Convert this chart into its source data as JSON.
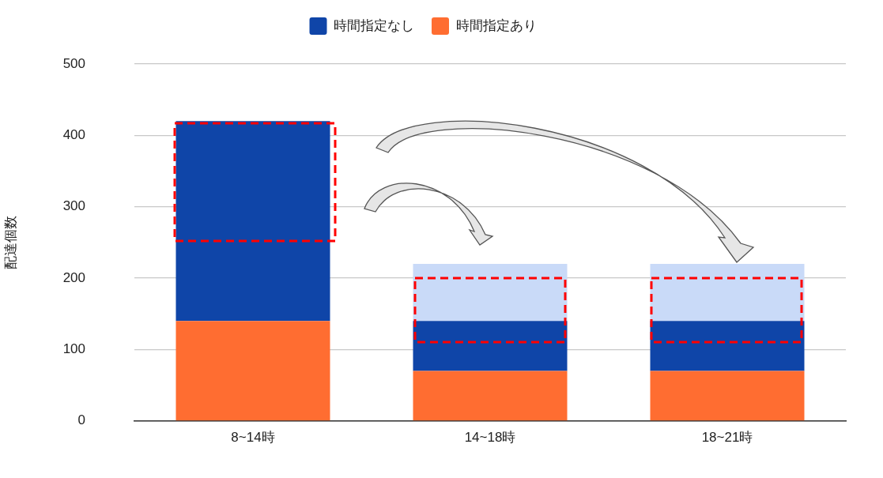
{
  "chart_data": {
    "type": "bar",
    "ylabel": "配達個数",
    "categories": [
      "8~14時",
      "14~18時",
      "18~21時"
    ],
    "series": [
      {
        "name": "時間指定あり",
        "color": "#ff6d31",
        "values": [
          140,
          70,
          70
        ]
      },
      {
        "name": "時間指定なし",
        "color": "#0f45a8",
        "values": [
          280,
          70,
          70
        ]
      },
      {
        "color": "#c9daf8",
        "values": [
          null,
          80,
          80
        ]
      }
    ],
    "stacked": true,
    "ylim": [
      0,
      500
    ],
    "yticks": [
      0,
      100,
      200,
      300,
      400,
      500
    ],
    "grid": "y",
    "legend": "top"
  }
}
